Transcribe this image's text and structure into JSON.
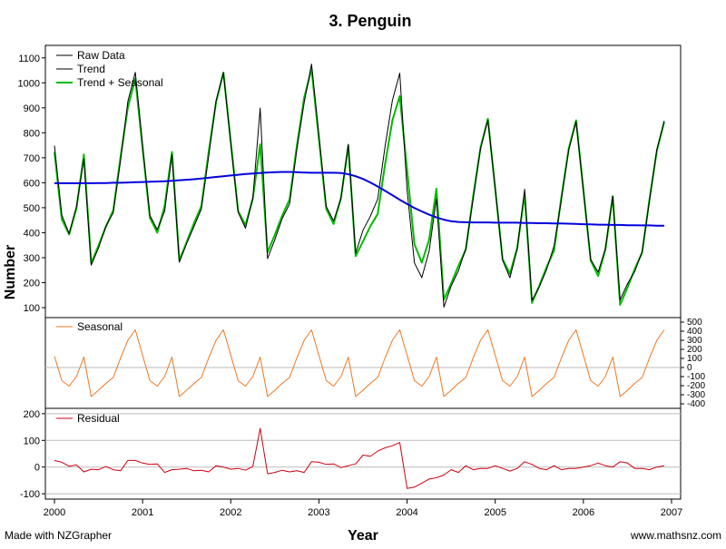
{
  "chart_data": {
    "type": "line",
    "title": "3. Penguin",
    "xlabel": "Year",
    "ylabel": "Number",
    "footer_left": "Made with NZGrapher",
    "footer_right": "www.mathsnz.com",
    "x_ticks": [
      "2000",
      "2001",
      "2002",
      "2003",
      "2004",
      "2005",
      "2006",
      "2007"
    ],
    "x_range": [
      2000,
      2007
    ],
    "colors": {
      "raw": "#000000",
      "trend": "#0000dd",
      "trend_seasonal": "#00bb00",
      "seasonal": "#ee7722",
      "residual": "#cc0011",
      "gridline": "#bbbbbb"
    },
    "main_panel": {
      "ylim": [
        60,
        1150
      ],
      "y_ticks": [
        100,
        200,
        300,
        400,
        500,
        600,
        700,
        800,
        900,
        1000,
        1100
      ],
      "legend": [
        "Raw Data",
        "Trend",
        "Trend + Seasonal"
      ],
      "legend_position": "top-left"
    },
    "seasonal_panel": {
      "label": "Seasonal",
      "ylim": [
        -450,
        550
      ],
      "y_ticks": [
        500,
        400,
        300,
        200,
        100,
        0,
        -100,
        -200,
        -300,
        -400
      ],
      "axis_side": "right",
      "zero_line": true
    },
    "residual_panel": {
      "label": "Residual",
      "ylim": [
        -120,
        220
      ],
      "y_ticks": [
        200,
        100,
        0,
        -100
      ],
      "gridlines": true
    },
    "time": [
      2000,
      2000.0833,
      2000.1667,
      2000.25,
      2000.3333,
      2000.4167,
      2000.5,
      2000.5833,
      2000.6667,
      2000.75,
      2000.8333,
      2000.9167,
      2001,
      2001.0833,
      2001.1667,
      2001.25,
      2001.3333,
      2001.4167,
      2001.5,
      2001.5833,
      2001.6667,
      2001.75,
      2001.8333,
      2001.9167,
      2002,
      2002.0833,
      2002.1667,
      2002.25,
      2002.3333,
      2002.4167,
      2002.5,
      2002.5833,
      2002.6667,
      2002.75,
      2002.8333,
      2002.9167,
      2003,
      2003.0833,
      2003.1667,
      2003.25,
      2003.3333,
      2003.4167,
      2003.5,
      2003.5833,
      2003.6667,
      2003.75,
      2003.8333,
      2003.9167,
      2004,
      2004.0833,
      2004.1667,
      2004.25,
      2004.3333,
      2004.4167,
      2004.5,
      2004.5833,
      2004.6667,
      2004.75,
      2004.8333,
      2004.9167,
      2005,
      2005.0833,
      2005.1667,
      2005.25,
      2005.3333,
      2005.4167,
      2005.5,
      2005.5833,
      2005.6667,
      2005.75,
      2005.8333,
      2005.9167,
      2006,
      2006.0833,
      2006.1667,
      2006.25,
      2006.3333,
      2006.4167,
      2006.5,
      2006.5833,
      2006.6667,
      2006.75,
      2006.8333,
      2006.9167
    ],
    "seasonal": [
      125,
      -145,
      -205,
      -100,
      115,
      -320,
      -250,
      -175,
      -110,
      105,
      300,
      415,
      135,
      -145,
      -205,
      -100,
      115,
      -320,
      -250,
      -175,
      -110,
      105,
      300,
      415,
      135,
      -145,
      -205,
      -100,
      115,
      -320,
      -250,
      -175,
      -110,
      105,
      300,
      415,
      135,
      -145,
      -205,
      -100,
      115,
      -320,
      -250,
      -175,
      -110,
      105,
      300,
      415,
      135,
      -145,
      -205,
      -100,
      115,
      -320,
      -250,
      -175,
      -110,
      105,
      300,
      415,
      135,
      -145,
      -205,
      -100,
      115,
      -320,
      -250,
      -175,
      -110,
      105,
      300,
      415,
      135,
      -145,
      -205,
      -100,
      115,
      -320,
      -250,
      -175,
      -110,
      105,
      300,
      415
    ],
    "trend": [
      598,
      598,
      598,
      598,
      598,
      598,
      599,
      599,
      600,
      600,
      601,
      602,
      603,
      604,
      605,
      606,
      608,
      610,
      612,
      614,
      617,
      620,
      623,
      626,
      629,
      632,
      635,
      637,
      639,
      641,
      642,
      643,
      643,
      642,
      641,
      640,
      640,
      640,
      640,
      639,
      634,
      626,
      615,
      601,
      585,
      568,
      550,
      532,
      515,
      499,
      485,
      472,
      461,
      452,
      446,
      443,
      442,
      441,
      441,
      441,
      440,
      440,
      440,
      440,
      439,
      439,
      438,
      438,
      437,
      437,
      436,
      435,
      434,
      433,
      432,
      432,
      431,
      431,
      430,
      430,
      429,
      429,
      428,
      428
    ],
    "trend_plus_seasonal": [
      723,
      453,
      393,
      498,
      713,
      278,
      349,
      424,
      490,
      705,
      901,
      1017,
      738,
      459,
      400,
      506,
      723,
      290,
      362,
      439,
      507,
      725,
      923,
      1041,
      764,
      487,
      430,
      537,
      754,
      321,
      392,
      468,
      533,
      747,
      941,
      1055,
      775,
      495,
      435,
      539,
      749,
      306,
      365,
      426,
      475,
      673,
      850,
      947,
      650,
      354,
      280,
      372,
      576,
      132,
      196,
      268,
      332,
      546,
      741,
      856,
      575,
      295,
      235,
      340,
      554,
      119,
      188,
      263,
      327,
      542,
      736,
      850,
      569,
      288,
      227,
      332,
      546,
      111,
      180,
      255,
      320,
      534,
      728,
      843
    ],
    "residual": [
      25,
      18,
      3,
      8,
      -18,
      -8,
      -10,
      2,
      -10,
      -14,
      25,
      25,
      15,
      10,
      12,
      -20,
      -10,
      -8,
      -5,
      -14,
      -12,
      -18,
      5,
      0,
      -8,
      -5,
      -12,
      2,
      145,
      -25,
      -20,
      -12,
      -18,
      -14,
      -20,
      20,
      18,
      10,
      12,
      -2,
      5,
      12,
      45,
      40,
      60,
      72,
      80,
      92,
      -80,
      -75,
      -60,
      -45,
      -40,
      -30,
      -10,
      -20,
      5,
      -10,
      -5,
      -5,
      5,
      -5,
      -15,
      -5,
      20,
      10,
      -5,
      -10,
      5,
      -10,
      -5,
      -5,
      0,
      5,
      15,
      5,
      0,
      20,
      15,
      -5,
      -5,
      -10,
      0,
      5
    ],
    "raw": [
      748,
      471,
      396,
      506,
      695,
      270,
      339,
      426,
      480,
      691,
      926,
      1042,
      753,
      469,
      412,
      486,
      713,
      282,
      357,
      425,
      495,
      707,
      928,
      1041,
      756,
      482,
      418,
      539,
      899,
      296,
      372,
      456,
      515,
      733,
      921,
      1075,
      793,
      505,
      447,
      537,
      754,
      318,
      410,
      466,
      535,
      745,
      930,
      1039,
      570,
      279,
      220,
      327,
      536,
      102,
      186,
      248,
      337,
      536,
      736,
      851,
      580,
      290,
      220,
      335,
      574,
      129,
      183,
      253,
      347,
      532,
      731,
      845,
      569,
      293,
      242,
      337,
      546,
      131,
      195,
      245,
      325,
      529,
      733,
      848
    ]
  }
}
